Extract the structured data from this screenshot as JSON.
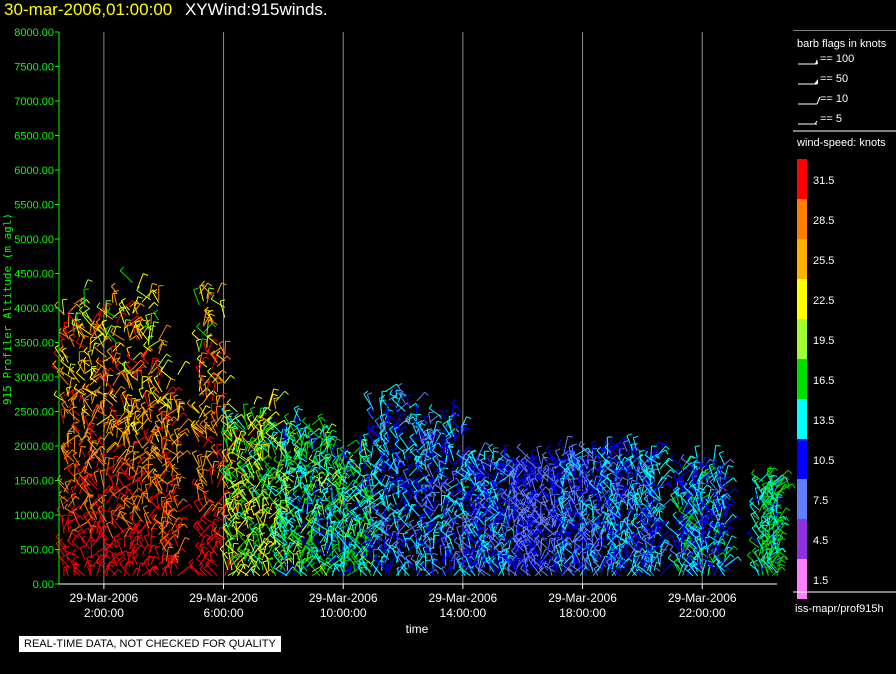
{
  "header": {
    "timestamp": "30-mar-2006,01:00:00",
    "title": "XYWind:915winds."
  },
  "chart_data": {
    "type": "scatter",
    "ylabel": "915 Profiler Altitude (m agl)",
    "xlabel": "time",
    "ylim": [
      0,
      8000
    ],
    "xlim_hours": [
      0.5,
      24.5
    ],
    "y_ticks": [
      "0.00",
      "500.00",
      "1000.00",
      "1500.00",
      "2000.00",
      "2500.00",
      "3000.00",
      "3500.00",
      "4000.00",
      "4500.00",
      "5000.00",
      "5500.00",
      "6000.00",
      "6500.00",
      "7000.00",
      "7500.00",
      "8000.00"
    ],
    "x_ticks": [
      {
        "hour": 2,
        "date": "29-Mar-2006",
        "time": "2:00:00"
      },
      {
        "hour": 6,
        "date": "29-Mar-2006",
        "time": "6:00:00"
      },
      {
        "hour": 10,
        "date": "29-Mar-2006",
        "time": "10:00:00"
      },
      {
        "hour": 14,
        "date": "29-Mar-2006",
        "time": "14:00:00"
      },
      {
        "hour": 18,
        "date": "29-Mar-2006",
        "time": "18:00:00"
      },
      {
        "hour": 22,
        "date": "29-Mar-2006",
        "time": "22:00:00"
      }
    ],
    "grid": "vertical",
    "series": [
      {
        "hour_start": 0.6,
        "hour_end": 2.4,
        "top_m": 4500,
        "low_speed": 15,
        "high_speed": 32
      },
      {
        "hour_start": 2.4,
        "hour_end": 3.9,
        "top_m": 4600,
        "low_speed": 13,
        "high_speed": 32
      },
      {
        "hour_start": 3.9,
        "hour_end": 4.6,
        "top_m": 3200,
        "low_speed": 18,
        "high_speed": 31
      },
      {
        "hour_start": 5.1,
        "hour_end": 6.1,
        "top_m": 4450,
        "low_speed": 12,
        "high_speed": 32
      },
      {
        "hour_start": 6.1,
        "hour_end": 7.8,
        "top_m": 2750,
        "low_speed": 8,
        "high_speed": 25
      },
      {
        "hour_start": 7.8,
        "hour_end": 9.6,
        "top_m": 2450,
        "low_speed": 6,
        "high_speed": 20
      },
      {
        "hour_start": 9.6,
        "hour_end": 11.0,
        "top_m": 2100,
        "low_speed": 6,
        "high_speed": 19
      },
      {
        "hour_start": 11.0,
        "hour_end": 12.5,
        "top_m": 2900,
        "low_speed": 3,
        "high_speed": 15
      },
      {
        "hour_start": 12.5,
        "hour_end": 14.0,
        "top_m": 2600,
        "low_speed": 3,
        "high_speed": 14
      },
      {
        "hour_start": 14.0,
        "hour_end": 15.6,
        "top_m": 2000,
        "low_speed": 4,
        "high_speed": 14
      },
      {
        "hour_start": 15.6,
        "hour_end": 17.2,
        "top_m": 1900,
        "low_speed": 3,
        "high_speed": 12
      },
      {
        "hour_start": 17.2,
        "hour_end": 18.9,
        "top_m": 2100,
        "low_speed": 2,
        "high_speed": 14
      },
      {
        "hour_start": 18.9,
        "hour_end": 20.7,
        "top_m": 2100,
        "low_speed": 4,
        "high_speed": 15
      },
      {
        "hour_start": 21.1,
        "hour_end": 22.8,
        "top_m": 1850,
        "low_speed": 4,
        "high_speed": 16
      },
      {
        "hour_start": 23.8,
        "hour_end": 24.6,
        "top_m": 1700,
        "low_speed": 8,
        "high_speed": 18
      }
    ]
  },
  "legend": {
    "barb_title": "barb flags in knots",
    "barb_items": [
      "== 100",
      "== 50",
      "== 10",
      "== 5"
    ],
    "speed_title": "wind-speed: knots",
    "speed_levels": [
      {
        "label": "31.5",
        "color": "#ff0000"
      },
      {
        "label": "28.5",
        "color": "#ff8000"
      },
      {
        "label": "25.5",
        "color": "#ffb000"
      },
      {
        "label": "22.5",
        "color": "#ffff00"
      },
      {
        "label": "19.5",
        "color": "#a0ff30"
      },
      {
        "label": "16.5",
        "color": "#00e000"
      },
      {
        "label": "13.5",
        "color": "#00ffff"
      },
      {
        "label": "10.5",
        "color": "#0000ff"
      },
      {
        "label": "7.5",
        "color": "#6080ff"
      },
      {
        "label": "4.5",
        "color": "#9030e0"
      },
      {
        "label": "1.5",
        "color": "#ff80ff"
      }
    ],
    "footer": "iss-mapr/prof915h"
  },
  "notice": "REAL-TIME DATA, NOT CHECKED FOR QUALITY",
  "colors": {
    "axis": "#00ff00",
    "grid": "#ffffff",
    "background": "#000000",
    "timestamp": "#ffff00"
  }
}
